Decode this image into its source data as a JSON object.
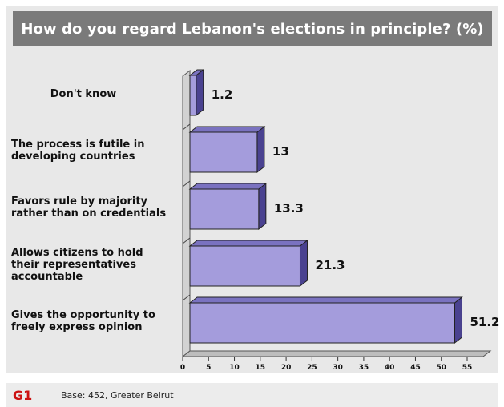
{
  "chart_data": {
    "type": "bar",
    "orientation": "horizontal",
    "title": "How do you regard Lebanon's elections in principle? (%)",
    "categories": [
      "Don't know",
      "The process is futile in developing countries",
      "Favors rule by majority rather than on credentials",
      "Allows citizens to hold their representatives accountable",
      "Gives the opportunity to freely express opinion"
    ],
    "category_lines": [
      [
        "Don't know"
      ],
      [
        "The process is futile in",
        "developing countries"
      ],
      [
        "Favors rule by majority",
        "rather than on credentials"
      ],
      [
        "Allows citizens to hold",
        "their representatives",
        "accountable"
      ],
      [
        "Gives the opportunity to",
        "freely express opinion"
      ]
    ],
    "values": [
      1.2,
      13,
      13.3,
      21.3,
      51.2
    ],
    "value_labels": [
      "1.2",
      "13",
      "13.3",
      "21.3",
      "51.2"
    ],
    "xticks": [
      "0",
      "5",
      "10",
      "15",
      "20",
      "25",
      "30",
      "35",
      "40",
      "45",
      "50",
      "55"
    ],
    "xlim": [
      0,
      55
    ],
    "grid": false,
    "colors": {
      "bar_face": "#a49cdc",
      "bar_top": "#7a72c0",
      "bar_side": "#4a4290",
      "wall": "#d2d2d2",
      "floor": "#bdbdbd"
    }
  },
  "footer": {
    "figure_code": "G1",
    "base_note": "Base: 452, Greater Beirut"
  }
}
